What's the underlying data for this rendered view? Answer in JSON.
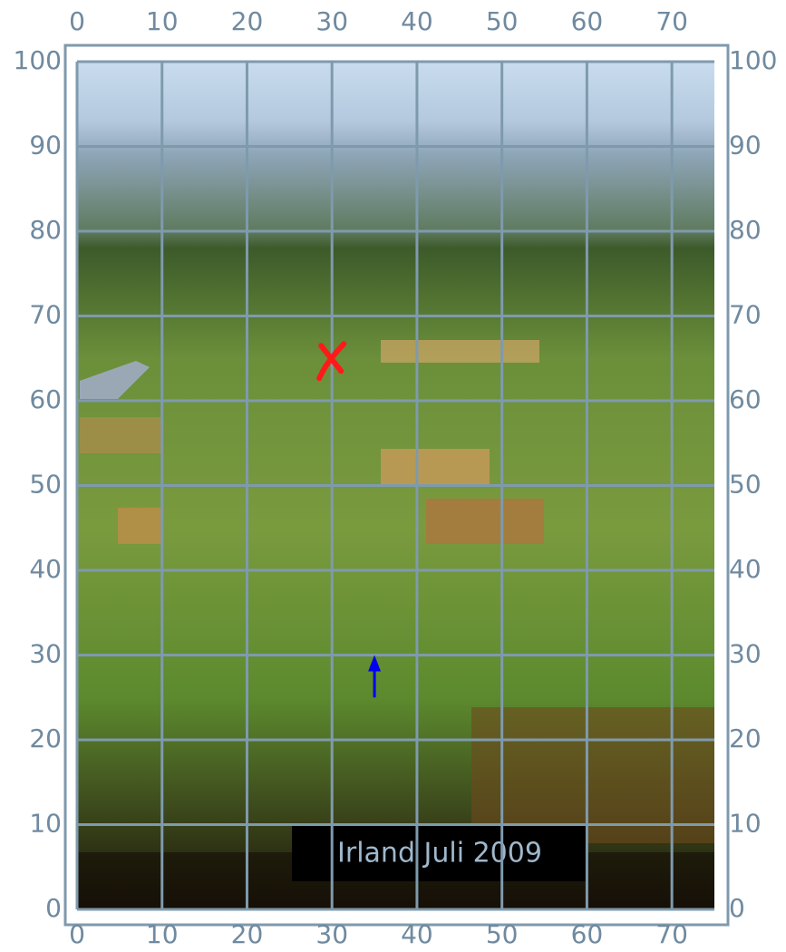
{
  "grid": {
    "xlim": [
      0,
      75
    ],
    "ylim": [
      0,
      100
    ],
    "xticks": [
      0,
      10,
      20,
      30,
      40,
      50,
      60,
      70
    ],
    "yticks": [
      0,
      10,
      20,
      30,
      40,
      50,
      60,
      70,
      80,
      90,
      100
    ],
    "color": "#7f9aad"
  },
  "markers": [
    {
      "x": 30,
      "y": 65,
      "color": "#ff1a1a"
    }
  ],
  "arrow": {
    "x": 35,
    "y_start": 25,
    "y_end": 30,
    "color": "#0000ee"
  },
  "caption": "Irland Juli 2009"
}
